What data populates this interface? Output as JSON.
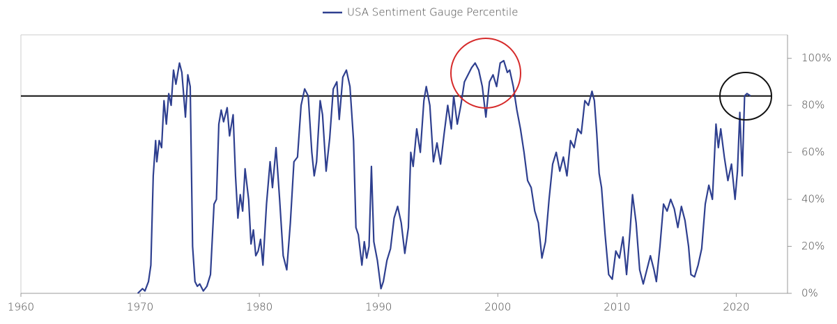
{
  "chart_data": {
    "type": "line",
    "x": [
      1969.8,
      1970.2,
      1970.4,
      1970.7,
      1970.9,
      1971.1,
      1971.3,
      1971.4,
      1971.6,
      1971.8,
      1972.0,
      1972.2,
      1972.4,
      1972.6,
      1972.8,
      1973.0,
      1973.3,
      1973.5,
      1973.8,
      1974.0,
      1974.2,
      1974.4,
      1974.6,
      1974.8,
      1975.0,
      1975.3,
      1975.6,
      1975.9,
      1976.2,
      1976.4,
      1976.6,
      1976.8,
      1977.0,
      1977.3,
      1977.5,
      1977.8,
      1978.0,
      1978.2,
      1978.4,
      1978.6,
      1978.8,
      1979.1,
      1979.3,
      1979.5,
      1979.7,
      1979.9,
      1980.1,
      1980.3,
      1980.6,
      1980.9,
      1981.1,
      1981.4,
      1981.7,
      1982.0,
      1982.3,
      1982.6,
      1982.9,
      1983.2,
      1983.5,
      1983.8,
      1984.1,
      1984.4,
      1984.6,
      1984.8,
      1985.1,
      1985.3,
      1985.6,
      1985.9,
      1986.2,
      1986.5,
      1986.7,
      1987.0,
      1987.3,
      1987.6,
      1987.9,
      1988.1,
      1988.3,
      1988.6,
      1988.8,
      1989.0,
      1989.2,
      1989.4,
      1989.6,
      1989.9,
      1990.2,
      1990.4,
      1990.7,
      1991.0,
      1991.3,
      1991.6,
      1991.9,
      1992.2,
      1992.5,
      1992.7,
      1992.9,
      1993.2,
      1993.5,
      1993.8,
      1994.0,
      1994.3,
      1994.6,
      1994.9,
      1995.2,
      1995.5,
      1995.8,
      1996.1,
      1996.3,
      1996.6,
      1996.9,
      1997.2,
      1997.5,
      1997.8,
      1998.1,
      1998.4,
      1998.7,
      1999.0,
      1999.3,
      1999.6,
      1999.9,
      2000.2,
      2000.5,
      2000.8,
      2001.0,
      2001.3,
      2001.6,
      2001.9,
      2002.2,
      2002.5,
      2002.8,
      2003.1,
      2003.4,
      2003.7,
      2004.0,
      2004.3,
      2004.6,
      2004.9,
      2005.2,
      2005.5,
      2005.8,
      2006.1,
      2006.4,
      2006.7,
      2007.0,
      2007.3,
      2007.6,
      2007.9,
      2008.1,
      2008.3,
      2008.5,
      2008.7,
      2009.0,
      2009.3,
      2009.6,
      2009.9,
      2010.2,
      2010.5,
      2010.8,
      2011.1,
      2011.3,
      2011.6,
      2011.9,
      2012.2,
      2012.5,
      2012.8,
      2013.1,
      2013.3,
      2013.6,
      2013.9,
      2014.2,
      2014.5,
      2014.8,
      2015.1,
      2015.4,
      2015.7,
      2016.0,
      2016.2,
      2016.5,
      2016.8,
      2017.1,
      2017.4,
      2017.7,
      2018.0,
      2018.3,
      2018.5,
      2018.7,
      2019.0,
      2019.3,
      2019.6,
      2019.9,
      2020.1,
      2020.3,
      2020.5,
      2020.7,
      2020.9,
      2021.2
    ],
    "series": [
      {
        "name": "USA Sentiment Gauge Percentile",
        "color": "#2e3f8f",
        "values": [
          0,
          2,
          1,
          5,
          12,
          50,
          65,
          56,
          65,
          62,
          82,
          72,
          85,
          80,
          95,
          89,
          98,
          94,
          75,
          93,
          88,
          20,
          5,
          3,
          4,
          1,
          3,
          8,
          38,
          40,
          72,
          78,
          73,
          79,
          67,
          76,
          50,
          32,
          42,
          35,
          53,
          40,
          21,
          27,
          16,
          18,
          23,
          12,
          38,
          56,
          45,
          62,
          40,
          16,
          10,
          30,
          56,
          58,
          80,
          87,
          84,
          60,
          50,
          56,
          82,
          76,
          52,
          66,
          87,
          90,
          74,
          92,
          95,
          88,
          65,
          28,
          25,
          12,
          22,
          15,
          20,
          54,
          22,
          14,
          2,
          5,
          14,
          19,
          32,
          37,
          30,
          17,
          28,
          60,
          54,
          70,
          60,
          82,
          88,
          80,
          56,
          64,
          55,
          68,
          80,
          70,
          84,
          72,
          80,
          90,
          93,
          96,
          98,
          95,
          88,
          75,
          90,
          93,
          88,
          98,
          99,
          94,
          95,
          88,
          78,
          70,
          60,
          48,
          45,
          35,
          30,
          15,
          22,
          40,
          55,
          60,
          52,
          58,
          50,
          65,
          62,
          70,
          68,
          82,
          80,
          86,
          82,
          68,
          51,
          45,
          25,
          8,
          6,
          18,
          15,
          24,
          8,
          27,
          42,
          30,
          10,
          4,
          10,
          16,
          10,
          5,
          20,
          38,
          35,
          40,
          36,
          28,
          37,
          31,
          20,
          8,
          7,
          12,
          19,
          38,
          46,
          40,
          72,
          62,
          70,
          58,
          48,
          55,
          40,
          52,
          77,
          50,
          84,
          85,
          84
        ]
      }
    ],
    "xlim": [
      1960,
      2024.3
    ],
    "xticks": [
      1960,
      1970,
      1980,
      1990,
      2000,
      2010,
      2020
    ],
    "ylim": [
      0,
      110
    ],
    "yticks": [
      {
        "value": 0,
        "label": "0%"
      },
      {
        "value": 20,
        "label": "20%"
      },
      {
        "value": 40,
        "label": "40%"
      },
      {
        "value": 60,
        "label": "60%"
      },
      {
        "value": 80,
        "label": "80%"
      },
      {
        "value": 100,
        "label": "100%"
      }
    ],
    "reference_line": 84,
    "legend": "top"
  }
}
